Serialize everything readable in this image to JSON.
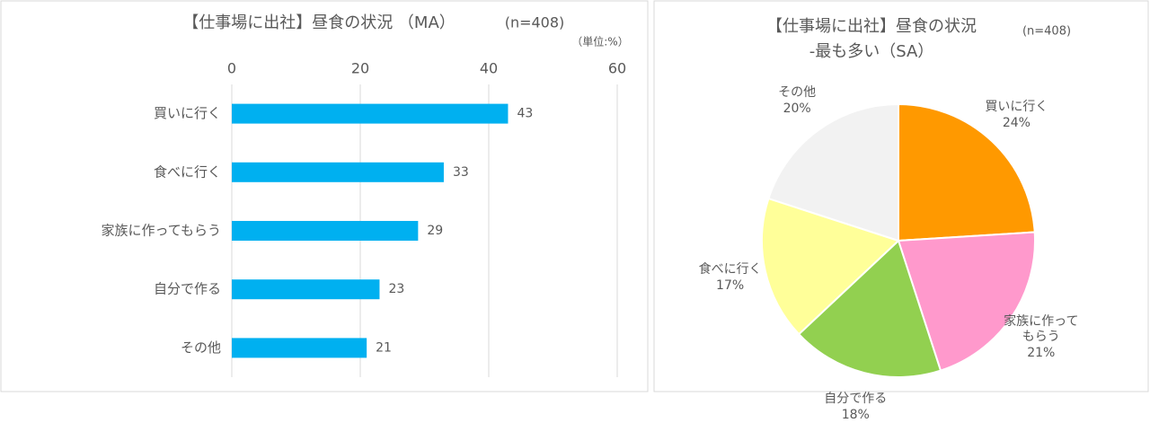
{
  "chart_data": [
    {
      "type": "hbar",
      "title": "【仕事場に出社】昼食の状況 （MA）",
      "annotation": "(n=408)",
      "unit_label": "（単位:%）",
      "categories": [
        "買いに行く",
        "食べに行く",
        "家族に作ってもらう",
        "自分で作る",
        "その他"
      ],
      "values": [
        43,
        33,
        29,
        23,
        21
      ],
      "color": "#00b0f0",
      "xlim": [
        0,
        60
      ],
      "xticks": [
        0,
        20,
        40,
        60
      ],
      "grid": true
    },
    {
      "type": "pie",
      "title": "【仕事場に出社】昼食の状況",
      "subtitle": "-最も多い（SA）",
      "annotation": "(n=408)",
      "categories": [
        "買いに行く",
        "家族に作ってもらう",
        "自分で作る",
        "食べに行く",
        "その他"
      ],
      "values": [
        24,
        21,
        18,
        17,
        20
      ],
      "value_labels": [
        "24%",
        "21%",
        "18%",
        "17%",
        "20%"
      ],
      "colors": [
        "#ff9900",
        "#ff99cc",
        "#92d050",
        "#ffff99",
        "#f2f2f2"
      ]
    }
  ]
}
